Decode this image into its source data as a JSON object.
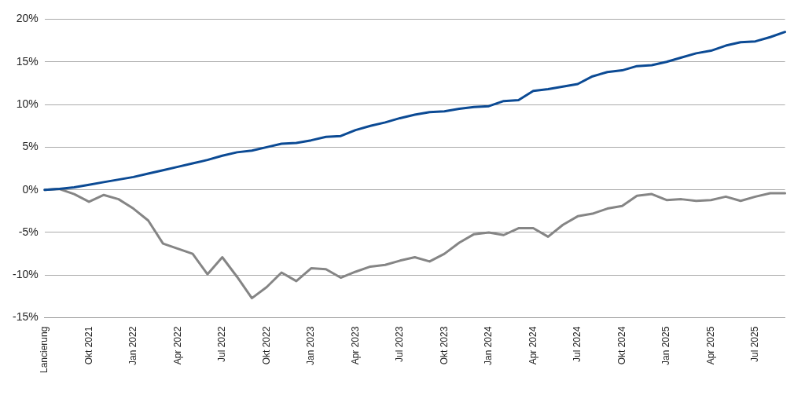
{
  "chart_data": {
    "type": "line",
    "categories": [
      "Lancierung",
      null,
      null,
      "Okt 2021",
      null,
      null,
      "Jan 2022",
      null,
      null,
      "Apr 2022",
      null,
      null,
      "Jul 2022",
      null,
      null,
      "Okt 2022",
      null,
      null,
      "Jan 2023",
      null,
      null,
      "Apr 2023",
      null,
      null,
      "Jul 2023",
      null,
      null,
      "Okt 2023",
      null,
      null,
      "Jan 2024",
      null,
      null,
      "Apr 2024",
      null,
      null,
      "Jul 2024",
      null,
      null,
      "Okt 2024",
      null,
      null,
      "Jan 2025",
      null,
      null,
      "Apr 2025",
      null,
      null,
      "Jul 2025",
      null,
      null
    ],
    "series": [
      {
        "color": "#0b4a94",
        "values": [
          0,
          0.1,
          0.3,
          0.6,
          0.9,
          1.2,
          1.5,
          1.9,
          2.3,
          2.7,
          3.1,
          3.5,
          4.0,
          4.4,
          4.6,
          5.0,
          5.4,
          5.5,
          5.8,
          6.2,
          6.3,
          7.0,
          7.5,
          7.9,
          8.4,
          8.8,
          9.1,
          9.2,
          9.5,
          9.7,
          9.8,
          10.4,
          10.5,
          11.6,
          11.8,
          12.1,
          12.4,
          13.3,
          13.8,
          14.0,
          14.5,
          14.6,
          15.0,
          15.5,
          16.0,
          16.3,
          16.9,
          17.3,
          17.4,
          17.9,
          18.5
        ]
      },
      {
        "color": "#858585",
        "values": [
          0,
          0.1,
          -0.5,
          -1.4,
          -0.6,
          -1.1,
          -2.2,
          -3.6,
          -6.3,
          -6.9,
          -7.5,
          -9.9,
          -7.9,
          -10.2,
          -12.7,
          -11.4,
          -9.7,
          -10.7,
          -9.2,
          -9.3,
          -10.3,
          -9.6,
          -9.0,
          -8.8,
          -8.3,
          -7.9,
          -8.4,
          -7.5,
          -6.2,
          -5.2,
          -5.0,
          -5.3,
          -4.5,
          -4.5,
          -5.5,
          -4.1,
          -3.1,
          -2.8,
          -2.2,
          -1.9,
          -0.7,
          -0.5,
          -1.2,
          -1.1,
          -1.3,
          -1.2,
          -0.8,
          -1.3,
          -0.8,
          -0.4,
          -0.4
        ]
      }
    ],
    "ylim": [
      -15,
      20
    ],
    "yticks": [
      {
        "value": -15,
        "label": "-15%"
      },
      {
        "value": -10,
        "label": "-10%"
      },
      {
        "value": -5,
        "label": "-5%"
      },
      {
        "value": 0,
        "label": "0%"
      },
      {
        "value": 5,
        "label": "5%"
      },
      {
        "value": 10,
        "label": "10%"
      },
      {
        "value": 15,
        "label": "15%"
      },
      {
        "value": 20,
        "label": "20%"
      }
    ],
    "grid": "y",
    "legend": false,
    "marker": "none",
    "line_style": "solid"
  }
}
